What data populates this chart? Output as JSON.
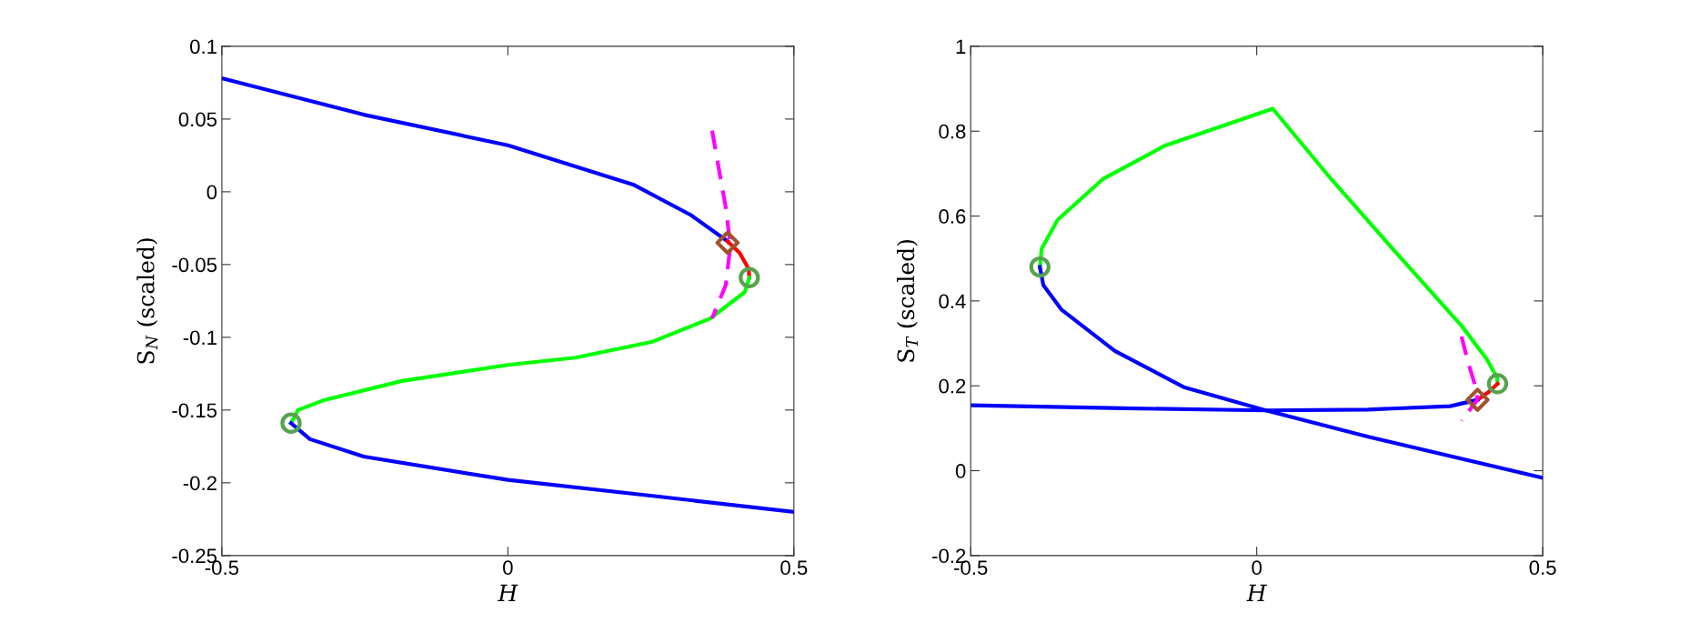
{
  "chart_data": [
    {
      "type": "line",
      "xlabel": "H",
      "ylabel": "S$_{N}$ (scaled)",
      "xlim": [
        -0.5,
        0.5
      ],
      "ylim": [
        -0.25,
        0.1
      ],
      "xticks": [
        -0.5,
        0,
        0.5
      ],
      "yticks": [
        -0.25,
        -0.2,
        -0.15,
        -0.1,
        -0.05,
        0,
        0.05,
        0.1
      ],
      "series": [
        {
          "type": "line",
          "color": "#0000ff",
          "line_style": "solid",
          "x": [
            -0.5,
            -0.252,
            0.0,
            0.219,
            0.32,
            0.384
          ],
          "values": [
            0.078,
            0.053,
            0.032,
            0.005,
            -0.016,
            -0.034
          ]
        },
        {
          "type": "line",
          "color": "#ff0000",
          "line_style": "solid",
          "x": [
            0.384,
            0.405,
            0.421,
            0.422
          ],
          "values": [
            -0.034,
            -0.042,
            -0.053,
            -0.059
          ]
        },
        {
          "type": "line",
          "color": "#00ff00",
          "line_style": "solid",
          "x": [
            0.422,
            0.414,
            0.354,
            0.253,
            0.118,
            0.0,
            -0.185,
            -0.32,
            -0.367,
            -0.379
          ],
          "values": [
            -0.059,
            -0.069,
            -0.087,
            -0.103,
            -0.114,
            -0.119,
            -0.13,
            -0.143,
            -0.15,
            -0.159
          ]
        },
        {
          "type": "line",
          "color": "#0000ff",
          "line_style": "solid",
          "x": [
            -0.379,
            -0.346,
            -0.252,
            0.0,
            0.253,
            0.5
          ],
          "values": [
            -0.159,
            -0.17,
            -0.182,
            -0.198,
            -0.209,
            -0.22
          ]
        },
        {
          "type": "line",
          "color": "#ff00ff",
          "line_style": "dashed",
          "x": [
            0.357,
            0.381,
            0.389,
            0.381,
            0.357
          ],
          "values": [
            0.042,
            -0.011,
            -0.037,
            -0.064,
            -0.087
          ]
        },
        {
          "type": "scatter",
          "marker": "circle",
          "color": "#55a24f",
          "x": [
            -0.379,
            0.422
          ],
          "values": [
            -0.159,
            -0.059
          ]
        },
        {
          "type": "scatter",
          "marker": "diamond",
          "color": "#a0522d",
          "x": [
            0.384
          ],
          "values": [
            -0.035
          ]
        }
      ]
    },
    {
      "type": "line",
      "xlabel": "H",
      "ylabel": "S$_{T}$ (scaled)",
      "xlim": [
        -0.5,
        0.5
      ],
      "ylim": [
        -0.2,
        1
      ],
      "xticks": [
        -0.5,
        0,
        0.5
      ],
      "yticks": [
        -0.2,
        0,
        0.2,
        0.4,
        0.6,
        0.8,
        1
      ],
      "series": [
        {
          "type": "line",
          "color": "#00ff00",
          "line_style": "solid",
          "x": [
            -0.379,
            -0.376,
            -0.348,
            -0.269,
            -0.162,
            0.028,
            0.124,
            0.231,
            0.359,
            0.402,
            0.42,
            0.421
          ],
          "values": [
            0.48,
            0.523,
            0.591,
            0.687,
            0.765,
            0.853,
            0.697,
            0.533,
            0.34,
            0.263,
            0.22,
            0.205
          ]
        },
        {
          "type": "line",
          "color": "#ff0000",
          "line_style": "solid",
          "x": [
            0.421,
            0.405,
            0.386
          ],
          "values": [
            0.205,
            0.185,
            0.167
          ]
        },
        {
          "type": "line",
          "color": "#0000ff",
          "line_style": "solid",
          "x": [
            0.386,
            0.338,
            0.195,
            0.016,
            -0.234,
            -0.5
          ],
          "values": [
            0.167,
            0.152,
            0.144,
            0.142,
            0.147,
            0.154
          ]
        },
        {
          "type": "line",
          "color": "#0000ff",
          "line_style": "solid",
          "x": [
            -0.379,
            -0.373,
            -0.341,
            -0.248,
            -0.126,
            0.016,
            0.195,
            0.5
          ],
          "values": [
            0.48,
            0.437,
            0.379,
            0.282,
            0.196,
            0.142,
            0.08,
            -0.017
          ]
        },
        {
          "type": "line",
          "color": "#ff00ff",
          "line_style": "dashed",
          "x": [
            0.358,
            0.37,
            0.382,
            0.386,
            0.358
          ],
          "values": [
            0.316,
            0.253,
            0.2,
            0.167,
            0.118
          ]
        },
        {
          "type": "scatter",
          "marker": "circle",
          "color": "#55a24f",
          "x": [
            -0.379,
            0.421
          ],
          "values": [
            0.48,
            0.205
          ]
        },
        {
          "type": "scatter",
          "marker": "diamond",
          "color": "#a0522d",
          "x": [
            0.386
          ],
          "values": [
            0.167
          ]
        }
      ]
    }
  ]
}
